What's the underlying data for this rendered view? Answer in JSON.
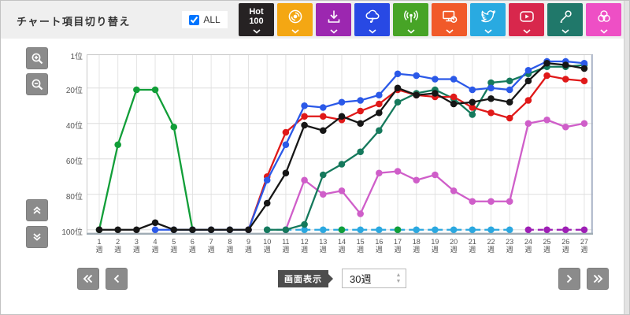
{
  "header": {
    "title": "チャート項目切り替え",
    "all_label": "ALL",
    "all_checked": true,
    "hot100_label": "Hot 100",
    "hot100_color": "#262223"
  },
  "toolbar_buttons": [
    {
      "icon": "disc-icon",
      "color": "#f4a713"
    },
    {
      "icon": "download-icon",
      "color": "#9c27b0"
    },
    {
      "icon": "cloud-music-icon",
      "color": "#2849e4"
    },
    {
      "icon": "broadcast-icon",
      "color": "#47a426"
    },
    {
      "icon": "monitor-disc-icon",
      "color": "#f15a29"
    },
    {
      "icon": "twitter-icon",
      "color": "#29aae1"
    },
    {
      "icon": "youtube-icon",
      "color": "#d8274c"
    },
    {
      "icon": "microphone-icon",
      "color": "#20786a"
    },
    {
      "icon": "venn-icon",
      "color": "#ee4fc5"
    }
  ],
  "side_controls": {
    "icons": [
      "zoom-in-icon",
      "zoom-out-icon",
      "double-up-icon",
      "double-down-icon"
    ]
  },
  "footer": {
    "display_label": "画面表示",
    "range_value": "30週",
    "nav_icons": [
      "fast-backward-icon",
      "backward-icon",
      "forward-icon",
      "fast-forward-icon"
    ]
  },
  "chart_data": {
    "type": "line",
    "x_weeks": [
      1,
      2,
      3,
      4,
      5,
      6,
      7,
      8,
      9,
      10,
      11,
      12,
      13,
      14,
      15,
      16,
      17,
      18,
      19,
      20,
      21,
      22,
      23,
      24,
      25,
      26,
      27
    ],
    "x_suffix": "週",
    "y_ticks": [
      1,
      20,
      40,
      60,
      80,
      100
    ],
    "y_suffix": "位",
    "y_range": [
      1,
      100
    ],
    "y_axis_inverted": true,
    "grid": true,
    "legend": "none",
    "series": [
      {
        "name": "cyan",
        "color": "#2ba8e0",
        "dashed": true,
        "points": [
          null,
          null,
          null,
          null,
          null,
          null,
          null,
          null,
          null,
          100,
          100,
          100,
          100,
          100,
          100,
          100,
          100,
          100,
          100,
          100,
          100,
          100,
          100,
          null,
          null,
          null,
          null
        ]
      },
      {
        "name": "purple",
        "color": "#9e1fb5",
        "dashed": true,
        "points": [
          null,
          null,
          null,
          null,
          null,
          null,
          null,
          null,
          null,
          null,
          null,
          null,
          null,
          null,
          null,
          null,
          null,
          null,
          null,
          null,
          null,
          null,
          null,
          100,
          100,
          100,
          100
        ]
      },
      {
        "name": "magenta",
        "color": "#cf5ec9",
        "dashed": false,
        "points": [
          null,
          null,
          null,
          null,
          null,
          null,
          null,
          null,
          null,
          null,
          100,
          72,
          80,
          78,
          91,
          68,
          67,
          72,
          69,
          78,
          84,
          84,
          84,
          40,
          38,
          42,
          40
        ]
      },
      {
        "name": "green",
        "color": "#119e38",
        "dashed": false,
        "points": [
          100,
          52,
          21,
          21,
          42,
          100,
          null,
          null,
          null,
          null,
          null,
          null,
          null,
          100,
          null,
          null,
          100,
          null,
          null,
          null,
          null,
          null,
          null,
          null,
          null,
          null,
          null
        ]
      },
      {
        "name": "teal",
        "color": "#15795c",
        "dashed": false,
        "points": [
          null,
          null,
          null,
          null,
          null,
          null,
          null,
          null,
          null,
          100,
          100,
          97,
          69,
          63,
          56,
          44,
          28,
          23,
          21,
          26,
          35,
          17,
          16,
          12,
          8,
          8,
          7
        ]
      },
      {
        "name": "red",
        "color": "#e01919",
        "dashed": false,
        "points": [
          null,
          null,
          null,
          null,
          null,
          null,
          null,
          null,
          100,
          70,
          45,
          36,
          36,
          38,
          33,
          29,
          21,
          24,
          25,
          25,
          31,
          34,
          37,
          27,
          13,
          15,
          16
        ]
      },
      {
        "name": "blue",
        "color": "#2b59e8",
        "dashed": false,
        "points": [
          null,
          null,
          null,
          100,
          100,
          100,
          100,
          100,
          100,
          72,
          52,
          30,
          31,
          28,
          27,
          24,
          12,
          13,
          15,
          15,
          21,
          20,
          21,
          10,
          5,
          5,
          6
        ]
      },
      {
        "name": "black",
        "color": "#161616",
        "dashed": false,
        "points": [
          100,
          100,
          100,
          96,
          100,
          100,
          100,
          100,
          100,
          85,
          68,
          41,
          44,
          36,
          40,
          34,
          20,
          24,
          23,
          29,
          28,
          26,
          28,
          16,
          6,
          7,
          9
        ]
      }
    ]
  }
}
